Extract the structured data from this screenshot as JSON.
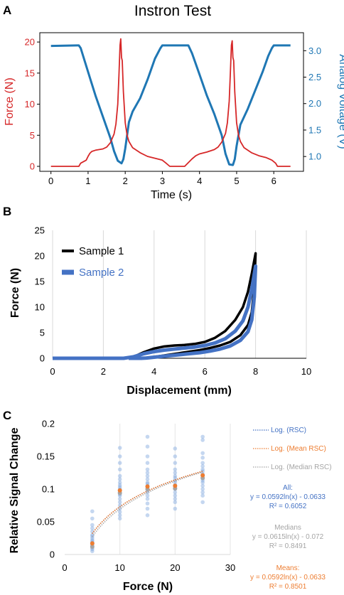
{
  "panel_letters": [
    "A",
    "B",
    "C"
  ],
  "colors": {
    "force_red": "#d62728",
    "voltage_blue": "#1f77b4",
    "sample1": "#000000",
    "sample2": "#4472c4",
    "scatter_blue": "#7fa6de",
    "mean_orange": "#ed7d31",
    "median_gray": "#a5a5a5",
    "fit_blue": "#4472c4"
  },
  "chart_data": [
    {
      "type": "line",
      "title": "Instron Test",
      "xlabel": "Time (s)",
      "ylabel": "Force (N)",
      "y2label": "Analog Voltage (V)",
      "xlim": [
        -0.3,
        6.8
      ],
      "ylim": [
        -0.8,
        21.5
      ],
      "y2lim": [
        0.72,
        3.34
      ],
      "xticks": [
        0,
        1,
        2,
        3,
        4,
        5,
        6
      ],
      "yticks": [
        0,
        5,
        10,
        15,
        20
      ],
      "y2ticks": [
        1.0,
        1.5,
        2.0,
        2.5,
        3.0
      ],
      "series": [
        {
          "name": "",
          "axis": "left",
          "x": [
            0,
            0.75,
            0.8,
            0.95,
            1.0,
            1.05,
            1.1,
            1.2,
            1.4,
            1.5,
            1.6,
            1.7,
            1.75,
            1.8,
            1.83,
            1.86,
            1.88,
            1.9,
            1.92,
            1.95,
            2.0,
            2.05,
            2.1,
            2.2,
            2.4,
            2.6,
            2.8,
            3.0,
            3.1,
            3.2,
            3.6,
            3.7,
            3.8,
            3.9,
            4.0,
            4.2,
            4.4,
            4.5,
            4.6,
            4.7,
            4.75,
            4.8,
            4.83,
            4.86,
            4.88,
            4.9,
            4.92,
            4.95,
            5.0,
            5.05,
            5.1,
            5.2,
            5.4,
            5.6,
            5.8,
            5.95,
            6.05,
            6.1,
            6.45
          ],
          "values": [
            0,
            0,
            0.5,
            1.0,
            1.6,
            2.1,
            2.4,
            2.6,
            2.8,
            3.1,
            3.8,
            5.2,
            6.8,
            10.0,
            14.5,
            19.5,
            20.5,
            17.5,
            17.0,
            12.0,
            7.0,
            5.0,
            4.0,
            3.0,
            2.2,
            1.6,
            1.3,
            1.0,
            0.5,
            0.0,
            0,
            0.6,
            1.2,
            1.7,
            2.0,
            2.3,
            2.7,
            3.1,
            3.9,
            5.3,
            7.0,
            10.5,
            15.0,
            19.5,
            20.2,
            17.5,
            17.0,
            12.0,
            7.0,
            5.0,
            4.0,
            3.0,
            2.2,
            1.7,
            1.4,
            1.0,
            0.5,
            0.0,
            0
          ]
        },
        {
          "name": "",
          "axis": "right",
          "x": [
            0,
            0.7,
            0.75,
            0.8,
            1.0,
            1.2,
            1.4,
            1.6,
            1.7,
            1.8,
            1.9,
            1.95,
            2.0,
            2.1,
            2.2,
            2.4,
            2.6,
            2.8,
            2.95,
            3.0,
            3.05,
            3.6,
            3.7,
            3.8,
            4.0,
            4.2,
            4.4,
            4.6,
            4.7,
            4.8,
            4.9,
            4.95,
            5.0,
            5.1,
            5.3,
            5.5,
            5.7,
            5.85,
            5.95,
            6.0,
            6.45
          ],
          "values": [
            3.09,
            3.1,
            3.1,
            3.05,
            2.6,
            2.15,
            1.75,
            1.35,
            1.1,
            0.92,
            0.87,
            0.95,
            1.15,
            1.65,
            1.85,
            2.1,
            2.45,
            2.85,
            3.05,
            3.1,
            3.1,
            3.1,
            3.1,
            2.95,
            2.55,
            2.15,
            1.8,
            1.4,
            1.05,
            0.85,
            0.84,
            0.95,
            1.2,
            1.6,
            1.9,
            2.25,
            2.6,
            2.9,
            3.05,
            3.1,
            3.1
          ]
        }
      ]
    },
    {
      "type": "line",
      "xlabel": "Displacement (mm)",
      "ylabel": "Force (N)",
      "xlim": [
        0,
        10
      ],
      "ylim": [
        0,
        25
      ],
      "xticks": [
        0,
        2,
        4,
        6,
        8,
        10
      ],
      "yticks": [
        0,
        5,
        10,
        15,
        20,
        25
      ],
      "legend_position": "top-left",
      "series": [
        {
          "name": "Sample 1",
          "loading_x": [
            0,
            2.8,
            3.2,
            3.6,
            4.0,
            4.4,
            4.8,
            5.2,
            5.6,
            6.0,
            6.4,
            6.8,
            7.2,
            7.5,
            7.7,
            7.85,
            8.0
          ],
          "loading_y": [
            0,
            0,
            0.3,
            1.2,
            1.9,
            2.3,
            2.5,
            2.6,
            2.8,
            3.2,
            4.0,
            5.3,
            7.5,
            10.0,
            13.0,
            16.5,
            20.5
          ],
          "unloading_x": [
            8.0,
            7.95,
            7.85,
            7.7,
            7.4,
            7.0,
            6.6,
            6.2,
            5.8,
            5.4,
            5.0,
            4.6,
            4.2,
            3.9,
            3.7,
            3.5,
            3.0
          ],
          "unloading_y": [
            20.5,
            14.0,
            9.0,
            6.5,
            4.5,
            3.2,
            2.5,
            2.0,
            1.6,
            1.3,
            1.0,
            0.7,
            0.4,
            0.2,
            0.05,
            0,
            0
          ]
        },
        {
          "name": "Sample 2",
          "loading_x": [
            0,
            2.8,
            3.2,
            3.6,
            4.0,
            4.4,
            4.8,
            5.2,
            5.6,
            6.0,
            6.4,
            6.8,
            7.2,
            7.5,
            7.7,
            7.85,
            8.0
          ],
          "loading_y": [
            0,
            0,
            0.3,
            0.9,
            1.3,
            1.6,
            1.8,
            2.0,
            2.2,
            2.5,
            3.0,
            3.8,
            5.3,
            7.3,
            10.0,
            13.5,
            18.0
          ],
          "unloading_x": [
            8.0,
            7.95,
            7.85,
            7.7,
            7.4,
            7.0,
            6.6,
            6.2,
            5.8,
            5.4,
            5.0,
            4.6,
            4.2,
            3.9,
            3.7,
            3.5,
            3.0
          ],
          "unloading_y": [
            18.0,
            12.0,
            7.5,
            5.2,
            3.5,
            2.4,
            1.8,
            1.4,
            1.1,
            0.9,
            0.7,
            0.5,
            0.3,
            0.15,
            0.05,
            0,
            0
          ]
        }
      ]
    },
    {
      "type": "scatter",
      "xlabel": "Force (N)",
      "ylabel": "Relative Signal Change",
      "xlim": [
        0,
        30
      ],
      "ylim": [
        0,
        0.2
      ],
      "xticks": [
        0,
        10,
        20,
        30
      ],
      "yticks": [
        0,
        0.05,
        0.1,
        0.15,
        0.2
      ],
      "ytick_labels": [
        "0",
        "0.05",
        "0.1",
        "0.15",
        "0.2"
      ],
      "points": {
        "5": [
          0.005,
          0.008,
          0.01,
          0.012,
          0.014,
          0.015,
          0.017,
          0.018,
          0.02,
          0.022,
          0.025,
          0.028,
          0.03,
          0.035,
          0.04,
          0.045,
          0.055,
          0.066
        ],
        "10": [
          0.055,
          0.06,
          0.065,
          0.07,
          0.075,
          0.08,
          0.085,
          0.09,
          0.092,
          0.095,
          0.098,
          0.1,
          0.103,
          0.106,
          0.11,
          0.115,
          0.12,
          0.13,
          0.14,
          0.15,
          0.163
        ],
        "15": [
          0.06,
          0.07,
          0.078,
          0.085,
          0.09,
          0.095,
          0.098,
          0.1,
          0.102,
          0.105,
          0.108,
          0.11,
          0.115,
          0.12,
          0.125,
          0.13,
          0.14,
          0.15,
          0.165,
          0.18
        ],
        "20": [
          0.07,
          0.08,
          0.085,
          0.09,
          0.095,
          0.1,
          0.103,
          0.106,
          0.11,
          0.113,
          0.117,
          0.12,
          0.125,
          0.13,
          0.14,
          0.15,
          0.162
        ],
        "25": [
          0.08,
          0.09,
          0.095,
          0.1,
          0.105,
          0.11,
          0.113,
          0.116,
          0.12,
          0.123,
          0.127,
          0.13,
          0.135,
          0.14,
          0.148,
          0.155,
          0.175,
          0.18
        ]
      },
      "means": {
        "x": [
          5,
          10,
          15,
          20,
          25
        ],
        "y": [
          0.017,
          0.098,
          0.104,
          0.105,
          0.121
        ]
      },
      "medians": {
        "x": [
          5,
          10,
          15,
          20,
          25
        ],
        "y": [
          0.012,
          0.094,
          0.1,
          0.101,
          0.117
        ]
      },
      "fits": {
        "all": {
          "a": 0.0592,
          "b": -0.0633
        },
        "mean": {
          "a": 0.0592,
          "b": -0.0633
        },
        "median": {
          "a": 0.0615,
          "b": -0.072
        }
      },
      "legend": [
        {
          "label": "Log. (RSC)",
          "color": "#4472c4"
        },
        {
          "label": "Log. (Mean RSC)",
          "color": "#ed7d31"
        },
        {
          "label": "Log. (Median RSC)",
          "color": "#a5a5a5"
        }
      ],
      "annotations": {
        "all": {
          "title": "All:",
          "eq": "y = 0.0592ln(x) - 0.0633",
          "r2": "R² = 0.6052"
        },
        "medians": {
          "title": "Medians",
          "eq": "y = 0.0615ln(x) - 0.072",
          "r2": "R² = 0.8491"
        },
        "means": {
          "title": "Means:",
          "eq": "y = 0.0592ln(x) - 0.0633",
          "r2": "R² = 0.8501"
        }
      }
    }
  ]
}
